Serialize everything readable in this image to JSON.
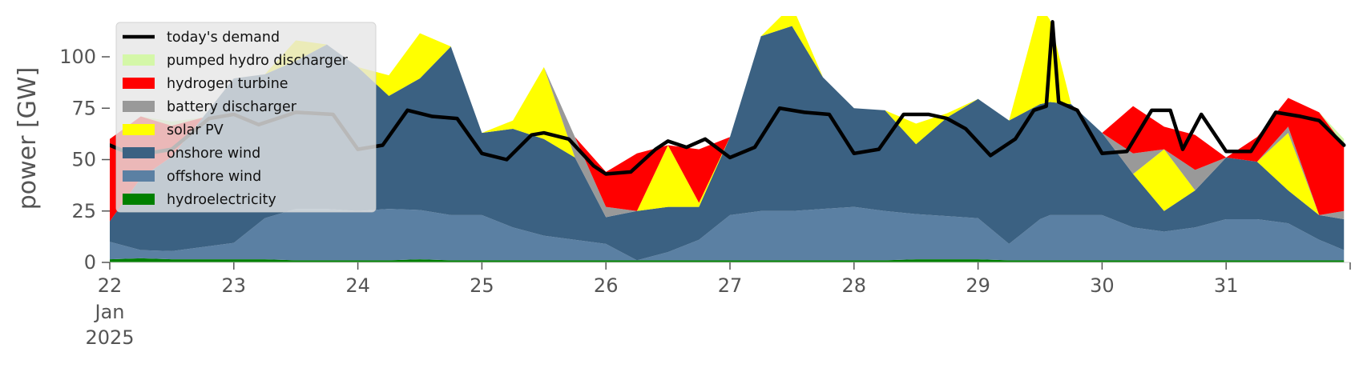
{
  "chart_data": {
    "type": "area",
    "ylabel": "power [GW]",
    "xlabel": "",
    "ylim": [
      0,
      117
    ],
    "x_ticks": [
      {
        "day": 22,
        "label": "22",
        "sub": [
          "Jan",
          "2025"
        ]
      },
      {
        "day": 23,
        "label": "23",
        "sub": []
      },
      {
        "day": 24,
        "label": "24",
        "sub": []
      },
      {
        "day": 25,
        "label": "25",
        "sub": []
      },
      {
        "day": 26,
        "label": "26",
        "sub": []
      },
      {
        "day": 27,
        "label": "27",
        "sub": []
      },
      {
        "day": 28,
        "label": "28",
        "sub": []
      },
      {
        "day": 29,
        "label": "29",
        "sub": []
      },
      {
        "day": 30,
        "label": "30",
        "sub": []
      },
      {
        "day": 31,
        "label": "31",
        "sub": []
      }
    ],
    "x_range_days": [
      22,
      32
    ],
    "y_ticks": [
      0,
      25,
      50,
      75,
      100
    ],
    "grid": false,
    "legend_position": "top-left",
    "legend": [
      {
        "name": "today's demand",
        "color": "#000000",
        "kind": "line"
      },
      {
        "name": "pumped hydro discharger",
        "color": "#d4f7a8",
        "kind": "patch"
      },
      {
        "name": "hydrogen turbine",
        "color": "#ff0000",
        "kind": "patch"
      },
      {
        "name": "battery discharger",
        "color": "#999999",
        "kind": "patch"
      },
      {
        "name": "solar PV",
        "color": "#ffff00",
        "kind": "patch"
      },
      {
        "name": "onshore wind",
        "color": "#3b6182",
        "kind": "patch"
      },
      {
        "name": "offshore wind",
        "color": "#5b80a3",
        "kind": "patch"
      },
      {
        "name": "hydroelectricity",
        "color": "#008000",
        "kind": "patch"
      }
    ],
    "stack_order": [
      "hydroelectricity",
      "offshore wind",
      "onshore wind",
      "solar PV",
      "battery discharger",
      "hydrogen turbine",
      "pumped hydro discharger"
    ],
    "x": [
      22.0,
      22.25,
      22.5,
      22.75,
      23.0,
      23.25,
      23.5,
      23.75,
      24.0,
      24.25,
      24.5,
      24.75,
      25.0,
      25.25,
      25.5,
      25.75,
      26.0,
      26.25,
      26.5,
      26.75,
      27.0,
      27.25,
      27.5,
      27.75,
      28.0,
      28.25,
      28.5,
      28.75,
      29.0,
      29.25,
      29.5,
      29.58,
      29.75,
      30.0,
      30.25,
      30.5,
      30.75,
      31.0,
      31.25,
      31.5,
      31.75,
      31.95
    ],
    "series": [
      {
        "name": "hydroelectricity",
        "values": [
          1.5,
          2,
          1.5,
          1.5,
          1.5,
          1.5,
          1,
          1,
          1,
          1,
          1.5,
          1,
          1,
          1,
          1,
          1,
          1,
          1,
          1,
          1,
          1,
          1,
          1,
          1,
          1,
          1,
          1.5,
          1.5,
          1.5,
          1,
          1,
          1,
          1,
          1,
          1,
          1,
          1,
          1,
          1,
          1,
          1,
          1
        ]
      },
      {
        "name": "offshore wind",
        "values": [
          8.5,
          4,
          4,
          6,
          8,
          20,
          25,
          25,
          24,
          25,
          24,
          22,
          22,
          16,
          12,
          10,
          8,
          0,
          4,
          10,
          22,
          24,
          24,
          25,
          26,
          24,
          22,
          21,
          20,
          8,
          20,
          22,
          22,
          22,
          16,
          14,
          16,
          20,
          20,
          18,
          10,
          5
        ]
      },
      {
        "name": "onshore wind",
        "values": [
          10,
          35,
          46,
          63,
          80,
          70,
          72,
          80,
          70,
          55,
          64,
          82,
          40,
          48,
          47,
          40,
          13,
          24,
          22,
          16,
          38,
          85,
          90,
          64,
          48,
          49,
          34,
          48,
          58,
          60,
          56,
          55,
          54,
          40,
          26,
          10,
          18,
          30,
          28,
          16,
          12,
          15
        ]
      },
      {
        "name": "solar PV",
        "values": [
          0,
          0,
          0,
          0,
          0,
          0,
          10,
          0,
          0,
          10,
          22,
          0,
          0,
          4,
          35,
          0,
          0,
          0,
          30,
          2,
          0,
          0,
          10,
          0,
          0,
          0,
          10,
          2,
          0,
          0,
          48,
          40,
          0,
          0,
          0,
          30,
          0,
          0,
          0,
          28,
          0,
          0
        ]
      },
      {
        "name": "battery discharger",
        "values": [
          0,
          0,
          0,
          0,
          0,
          0,
          0,
          0,
          0,
          0,
          0,
          0,
          0,
          0,
          0,
          10,
          5,
          0,
          0,
          0,
          0,
          0,
          0,
          0,
          0,
          0,
          0,
          0,
          0,
          0,
          0,
          0,
          0,
          0,
          10,
          0,
          10,
          0,
          0,
          3,
          0,
          4
        ]
      },
      {
        "name": "hydrogen turbine",
        "values": [
          40,
          30,
          15,
          0,
          0,
          0,
          0,
          0,
          0,
          0,
          0,
          0,
          0,
          0,
          0,
          0,
          17,
          28,
          0,
          26,
          0,
          0,
          0,
          0,
          0,
          0,
          0,
          0,
          0,
          0,
          0,
          0,
          0,
          0,
          23,
          11,
          17,
          0,
          12,
          14,
          50,
          32
        ]
      },
      {
        "name": "pumped hydro discharger",
        "values": [
          0,
          0,
          2,
          0,
          0,
          0,
          0,
          0,
          0,
          0,
          0,
          0,
          0,
          0,
          0,
          0,
          0,
          0,
          0,
          0,
          0,
          0,
          0,
          0,
          0,
          0,
          0,
          0,
          0,
          0,
          0,
          0,
          0,
          0,
          0,
          0,
          0,
          0,
          0,
          0,
          0,
          3
        ]
      }
    ],
    "demand": {
      "name": "today's demand",
      "x": [
        22.0,
        22.2,
        22.5,
        22.8,
        23.0,
        23.2,
        23.5,
        23.8,
        24.0,
        24.2,
        24.4,
        24.6,
        24.8,
        25.0,
        25.2,
        25.4,
        25.5,
        25.7,
        25.9,
        26.0,
        26.2,
        26.4,
        26.5,
        26.65,
        26.8,
        27.0,
        27.2,
        27.4,
        27.6,
        27.8,
        28.0,
        28.2,
        28.4,
        28.6,
        28.75,
        28.9,
        29.1,
        29.3,
        29.45,
        29.55,
        29.6,
        29.65,
        29.8,
        30.0,
        30.2,
        30.4,
        30.55,
        30.65,
        30.8,
        31.0,
        31.2,
        31.4,
        31.6,
        31.75,
        31.95
      ],
      "values": [
        57,
        52,
        55,
        70,
        72,
        67,
        73,
        72,
        55,
        57,
        74,
        71,
        70,
        53,
        50,
        62,
        63,
        60,
        47,
        43,
        44,
        55,
        59,
        56,
        60,
        51,
        56,
        75,
        73,
        72,
        53,
        55,
        72,
        72,
        70,
        65,
        52,
        60,
        74,
        76,
        117,
        78,
        74,
        53,
        54,
        74,
        74,
        55,
        72,
        54,
        54,
        73,
        71,
        69,
        57
      ]
    }
  }
}
